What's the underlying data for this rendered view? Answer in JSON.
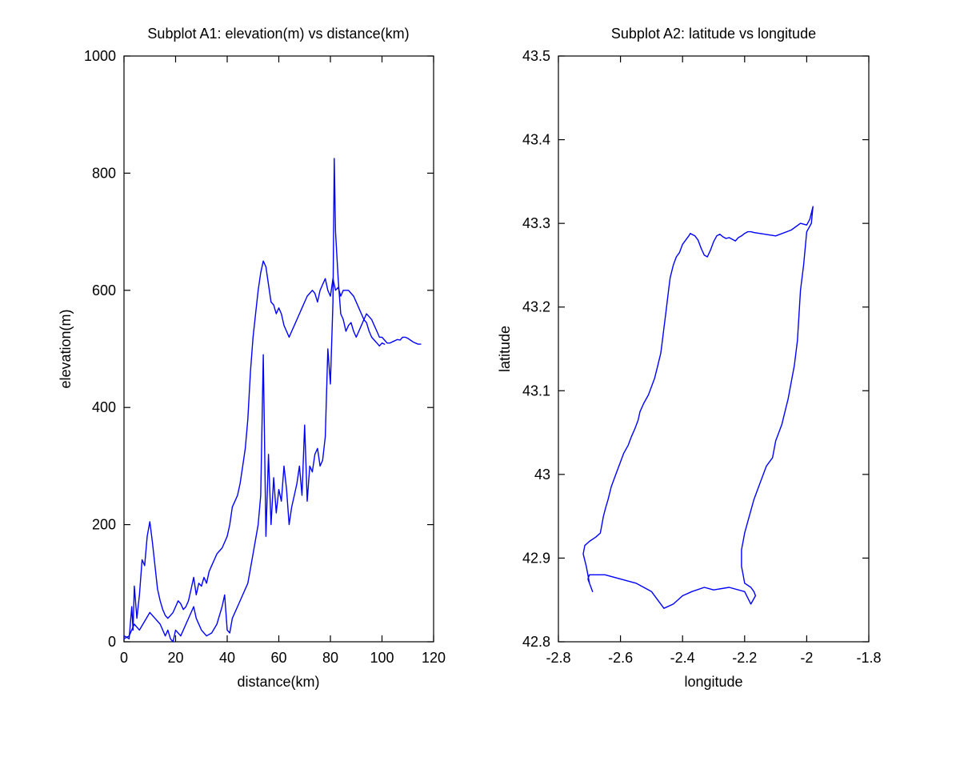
{
  "colors": {
    "line": "#0000ff",
    "axis": "#000000",
    "background": "#ffffff"
  },
  "chart_data": [
    {
      "type": "line",
      "title": "Subplot A1: elevation(m) vs distance(km)",
      "xlabel": "distance(km)",
      "ylabel": "elevation(m)",
      "xlim": [
        0,
        120
      ],
      "ylim": [
        0,
        1000
      ],
      "xticks": [
        0,
        20,
        40,
        60,
        80,
        100,
        120
      ],
      "yticks": [
        0,
        200,
        400,
        600,
        800,
        1000
      ],
      "grid": false,
      "series": [
        {
          "x": [
            0,
            1,
            2,
            3,
            3.5,
            4,
            5,
            6,
            7,
            8,
            9,
            10,
            11,
            12,
            13,
            14,
            15,
            16,
            17,
            18,
            19,
            20,
            21,
            22,
            23,
            24,
            25,
            26,
            27,
            28,
            29,
            30,
            31,
            32,
            33,
            34,
            35,
            36,
            37,
            38,
            39,
            40,
            41,
            42,
            43,
            44,
            45,
            46,
            47,
            48,
            49,
            50,
            51,
            52,
            53,
            54,
            55,
            56,
            57,
            58,
            59,
            60,
            61,
            62,
            63,
            64,
            65,
            66,
            67,
            68,
            69,
            70,
            71,
            72,
            73,
            74,
            75,
            76,
            77,
            78,
            79,
            80,
            81,
            81.5,
            82,
            83,
            84,
            85,
            86,
            87,
            88,
            89,
            90,
            91,
            92,
            93,
            94,
            95,
            96,
            97,
            98,
            99,
            100,
            101,
            102,
            103,
            104,
            105,
            106,
            107,
            108,
            109,
            110,
            111,
            112,
            113,
            114,
            115
          ],
          "y": [
            10,
            8,
            5,
            60,
            20,
            95,
            40,
            80,
            140,
            130,
            180,
            205,
            170,
            130,
            90,
            70,
            55,
            45,
            40,
            45,
            50,
            60,
            70,
            65,
            55,
            60,
            70,
            90,
            110,
            80,
            100,
            95,
            110,
            100,
            120,
            130,
            140,
            150,
            155,
            160,
            170,
            180,
            200,
            230,
            240,
            250,
            270,
            300,
            330,
            380,
            460,
            520,
            560,
            600,
            630,
            650,
            640,
            610,
            580,
            575,
            560,
            570,
            560,
            540,
            530,
            520,
            530,
            540,
            550,
            560,
            570,
            580,
            590,
            595,
            600,
            595,
            580,
            600,
            610,
            620,
            600,
            590,
            620,
            610,
            600,
            605,
            590,
            600,
            600,
            600,
            595,
            590,
            580,
            570,
            560,
            550,
            560,
            555,
            550,
            540,
            530,
            520,
            520,
            515,
            510,
            510,
            512,
            514,
            516,
            515,
            520,
            520,
            518,
            515,
            512,
            510,
            508,
            508
          ]
        },
        {
          "x": [
            0,
            2,
            4,
            6,
            8,
            10,
            12,
            14,
            16,
            17,
            18,
            19,
            20,
            22,
            24,
            26,
            27,
            28,
            30,
            32,
            34,
            36,
            38,
            39,
            40,
            41,
            42,
            44,
            46,
            48,
            50,
            52,
            53,
            54,
            55,
            56,
            57,
            58,
            59,
            60,
            61,
            62,
            63,
            64,
            65,
            66,
            67,
            68,
            69,
            70,
            71,
            72,
            73,
            74,
            75,
            76,
            77,
            78,
            79,
            80,
            81,
            81.5,
            82,
            83,
            84,
            85,
            86,
            87,
            88,
            89,
            90,
            91,
            92,
            93,
            94,
            95,
            96,
            97,
            98,
            99,
            100,
            101
          ],
          "y": [
            5,
            10,
            30,
            20,
            35,
            50,
            40,
            30,
            10,
            20,
            5,
            0,
            20,
            10,
            30,
            50,
            60,
            40,
            20,
            10,
            15,
            30,
            60,
            80,
            20,
            15,
            40,
            60,
            80,
            100,
            150,
            200,
            250,
            490,
            180,
            320,
            200,
            280,
            220,
            260,
            240,
            300,
            260,
            200,
            230,
            250,
            270,
            300,
            250,
            370,
            240,
            300,
            290,
            320,
            330,
            300,
            310,
            350,
            500,
            440,
            580,
            825,
            700,
            620,
            560,
            550,
            530,
            540,
            545,
            530,
            520,
            530,
            540,
            550,
            545,
            530,
            520,
            515,
            510,
            505,
            510,
            508
          ]
        }
      ]
    },
    {
      "type": "line",
      "title": "Subplot A2: latitude vs longitude",
      "xlabel": "longitude",
      "ylabel": "latitude",
      "xlim": [
        -2.8,
        -1.8
      ],
      "ylim": [
        42.8,
        43.5
      ],
      "xticks": [
        -2.8,
        -2.6,
        -2.4,
        -2.2,
        -2,
        -1.8
      ],
      "yticks": [
        42.8,
        42.9,
        43,
        43.1,
        43.2,
        43.3,
        43.4,
        43.5
      ],
      "xtick_labels": [
        "-2.8",
        "-2.6",
        "-2.4",
        "-2.2",
        "-2",
        "-1.8"
      ],
      "ytick_labels": [
        "42.8",
        "42.9",
        "43",
        "43.1",
        "43.2",
        "43.3",
        "43.4",
        "43.5"
      ],
      "grid": false,
      "series": [
        {
          "x": [
            -2.69,
            -2.7,
            -2.71,
            -2.72,
            -2.715,
            -2.7,
            -2.68,
            -2.665,
            -2.655,
            -2.648,
            -2.64,
            -2.63,
            -2.62,
            -2.61,
            -2.6,
            -2.59,
            -2.575,
            -2.565,
            -2.553,
            -2.543,
            -2.537,
            -2.525,
            -2.51,
            -2.5,
            -2.49,
            -2.48,
            -2.47,
            -2.465,
            -2.46,
            -2.455,
            -2.45,
            -2.445,
            -2.44,
            -2.43,
            -2.42,
            -2.41,
            -2.4,
            -2.39,
            -2.38,
            -2.375,
            -2.37,
            -2.36,
            -2.35,
            -2.34,
            -2.33,
            -2.32,
            -2.31,
            -2.3,
            -2.29,
            -2.28,
            -2.27,
            -2.26,
            -2.25,
            -2.24,
            -2.23,
            -2.22,
            -2.21,
            -2.2,
            -2.19,
            -2.18,
            -2.17,
            -2.1,
            -2.05,
            -2.02,
            -2.0,
            -1.99,
            -1.98,
            -1.985,
            -2.0,
            -2.01,
            -2.02,
            -2.025,
            -2.03,
            -2.04,
            -2.05,
            -2.06,
            -2.07,
            -2.08,
            -2.09,
            -2.1,
            -2.11,
            -2.13,
            -2.15,
            -2.17,
            -2.185,
            -2.2,
            -2.205,
            -2.21,
            -2.21,
            -2.21,
            -2.205,
            -2.2,
            -2.18,
            -2.17,
            -2.165,
            -2.18,
            -2.2,
            -2.25,
            -2.3,
            -2.33,
            -2.37,
            -2.4,
            -2.43,
            -2.46,
            -2.5,
            -2.55,
            -2.6,
            -2.65,
            -2.68,
            -2.7,
            -2.705,
            -2.7,
            -2.69
          ],
          "y": [
            42.86,
            42.87,
            42.89,
            42.905,
            42.915,
            42.92,
            42.925,
            42.93,
            42.95,
            42.96,
            42.97,
            42.985,
            42.995,
            43.005,
            43.015,
            43.025,
            43.035,
            43.045,
            43.055,
            43.065,
            43.075,
            43.085,
            43.095,
            43.105,
            43.115,
            43.13,
            43.145,
            43.16,
            43.175,
            43.19,
            43.205,
            43.22,
            43.235,
            43.25,
            43.26,
            43.265,
            43.275,
            43.28,
            43.285,
            43.288,
            43.287,
            43.285,
            43.28,
            43.27,
            43.262,
            43.26,
            43.268,
            43.278,
            43.285,
            43.287,
            43.284,
            43.282,
            43.283,
            43.281,
            43.279,
            43.283,
            43.285,
            43.288,
            43.29,
            43.29,
            43.289,
            43.285,
            43.292,
            43.3,
            43.298,
            43.305,
            43.32,
            43.3,
            43.29,
            43.25,
            43.22,
            43.19,
            43.16,
            43.13,
            43.11,
            43.09,
            43.075,
            43.06,
            43.05,
            43.04,
            43.02,
            43.01,
            42.99,
            42.97,
            42.95,
            42.93,
            42.92,
            42.91,
            42.9,
            42.89,
            42.88,
            42.87,
            42.865,
            42.86,
            42.855,
            42.845,
            42.86,
            42.865,
            42.862,
            42.865,
            42.86,
            42.855,
            42.845,
            42.84,
            42.86,
            42.87,
            42.875,
            42.88,
            42.88,
            42.88,
            42.875,
            42.87,
            42.86
          ]
        }
      ]
    }
  ]
}
